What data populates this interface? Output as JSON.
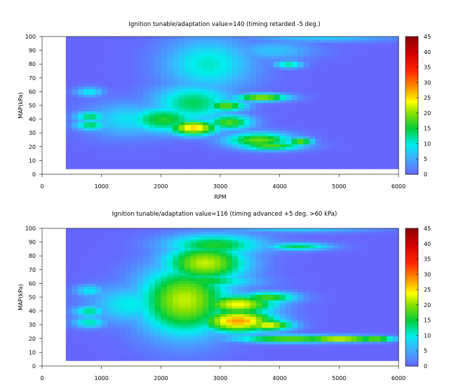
{
  "chart_data": [
    {
      "type": "heatmap",
      "title": "Ignition tunable/adaptation value=140 (timing retarded  -5 deg.)",
      "xlabel": "RPM",
      "ylabel": "MAP(kPa)",
      "xlim": [
        0,
        6000
      ],
      "ylim": [
        0,
        100
      ],
      "x_ticks": [
        0,
        1000,
        2000,
        3000,
        4000,
        5000,
        6000
      ],
      "y_ticks": [
        0,
        10,
        20,
        30,
        40,
        50,
        60,
        70,
        80,
        90,
        100
      ],
      "colorbar": {
        "range": [
          0,
          45
        ],
        "ticks": [
          0,
          5,
          10,
          15,
          20,
          25,
          30,
          35,
          40,
          45
        ]
      },
      "data_extent": {
        "x": [
          400,
          6000
        ],
        "y": [
          4,
          100
        ]
      },
      "background_value": 0,
      "blobs": [
        {
          "x": 800,
          "y": 60,
          "value": 10,
          "sx": 170,
          "sy": 2.5
        },
        {
          "x": 820,
          "y": 42,
          "value": 14,
          "sx": 200,
          "sy": 3
        },
        {
          "x": 820,
          "y": 36,
          "value": 14,
          "sx": 200,
          "sy": 3
        },
        {
          "x": 1450,
          "y": 40,
          "value": 9,
          "sx": 500,
          "sy": 9
        },
        {
          "x": 2050,
          "y": 40,
          "value": 16,
          "sx": 450,
          "sy": 7
        },
        {
          "x": 2550,
          "y": 34,
          "value": 26,
          "sx": 300,
          "sy": 4
        },
        {
          "x": 2550,
          "y": 52,
          "value": 14,
          "sx": 500,
          "sy": 10
        },
        {
          "x": 2800,
          "y": 80,
          "value": 11,
          "sx": 550,
          "sy": 14
        },
        {
          "x": 3150,
          "y": 38,
          "value": 18,
          "sx": 280,
          "sy": 4
        },
        {
          "x": 3100,
          "y": 50,
          "value": 19,
          "sx": 250,
          "sy": 3
        },
        {
          "x": 3700,
          "y": 56,
          "value": 22,
          "sx": 320,
          "sy": 2
        },
        {
          "x": 3650,
          "y": 25,
          "value": 19,
          "sx": 400,
          "sy": 4
        },
        {
          "x": 3850,
          "y": 21,
          "value": 18,
          "sx": 400,
          "sy": 2.5
        },
        {
          "x": 4350,
          "y": 24,
          "value": 20,
          "sx": 150,
          "sy": 2
        },
        {
          "x": 4150,
          "y": 80,
          "value": 13,
          "sx": 180,
          "sy": 2
        },
        {
          "x": 4700,
          "y": 99,
          "value": 7,
          "sx": 900,
          "sy": 2
        },
        {
          "x": 3900,
          "y": 90,
          "value": 7,
          "sx": 500,
          "sy": 5
        }
      ]
    },
    {
      "type": "heatmap",
      "title": "Ignition tunable/adaptation value=116 (timing advanced  +5 deg. >60 kPa)",
      "xlabel": "",
      "ylabel": "MAP(kPa)",
      "xlim": [
        0,
        6000
      ],
      "ylim": [
        0,
        100
      ],
      "x_ticks": [
        0,
        1000,
        2000,
        3000,
        4000,
        5000,
        6000
      ],
      "y_ticks": [
        0,
        10,
        20,
        30,
        40,
        50,
        60,
        70,
        80,
        90,
        100
      ],
      "colorbar": {
        "range": [
          0,
          45
        ],
        "ticks": [
          0,
          5,
          10,
          15,
          20,
          25,
          30,
          35,
          40,
          45
        ]
      },
      "data_extent": {
        "x": [
          400,
          6000
        ],
        "y": [
          4,
          100
        ]
      },
      "background_value": 0,
      "blobs": [
        {
          "x": 800,
          "y": 55,
          "value": 10,
          "sx": 180,
          "sy": 3
        },
        {
          "x": 800,
          "y": 40,
          "value": 13,
          "sx": 200,
          "sy": 3
        },
        {
          "x": 800,
          "y": 32,
          "value": 12,
          "sx": 200,
          "sy": 3
        },
        {
          "x": 1500,
          "y": 45,
          "value": 10,
          "sx": 500,
          "sy": 10
        },
        {
          "x": 2400,
          "y": 48,
          "value": 22,
          "sx": 550,
          "sy": 18
        },
        {
          "x": 2750,
          "y": 75,
          "value": 22,
          "sx": 500,
          "sy": 10
        },
        {
          "x": 2900,
          "y": 88,
          "value": 16,
          "sx": 600,
          "sy": 6
        },
        {
          "x": 3300,
          "y": 33,
          "value": 28,
          "sx": 450,
          "sy": 6
        },
        {
          "x": 3300,
          "y": 45,
          "value": 24,
          "sx": 450,
          "sy": 5
        },
        {
          "x": 3800,
          "y": 30,
          "value": 24,
          "sx": 300,
          "sy": 3
        },
        {
          "x": 3800,
          "y": 50,
          "value": 18,
          "sx": 350,
          "sy": 3
        },
        {
          "x": 4300,
          "y": 87,
          "value": 14,
          "sx": 400,
          "sy": 2
        },
        {
          "x": 4300,
          "y": 100,
          "value": 8,
          "sx": 900,
          "sy": 2
        },
        {
          "x": 5000,
          "y": 20,
          "value": 26,
          "sx": 500,
          "sy": 1.6
        },
        {
          "x": 4200,
          "y": 20,
          "value": 20,
          "sx": 700,
          "sy": 2
        },
        {
          "x": 5600,
          "y": 20,
          "value": 22,
          "sx": 250,
          "sy": 1.5
        },
        {
          "x": 2700,
          "y": 62,
          "value": 16,
          "sx": 600,
          "sy": 4
        }
      ]
    }
  ]
}
